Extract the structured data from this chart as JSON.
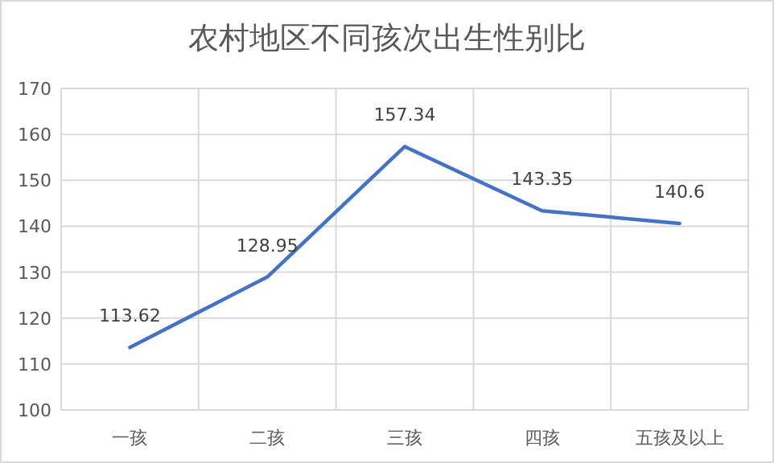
{
  "chart_data": {
    "type": "line",
    "title": "农村地区不同孩次出生性别比",
    "categories": [
      "一孩",
      "二孩",
      "三孩",
      "四孩",
      "五孩及以上"
    ],
    "series": [
      {
        "color": "#4472c4",
        "values": [
          113.62,
          128.95,
          157.34,
          143.35,
          140.6
        ]
      }
    ],
    "ylim": [
      100,
      170
    ],
    "yticks": [
      100,
      110,
      120,
      130,
      140,
      150,
      160,
      170
    ],
    "grid": true,
    "data_labels": true,
    "marker": "none"
  }
}
